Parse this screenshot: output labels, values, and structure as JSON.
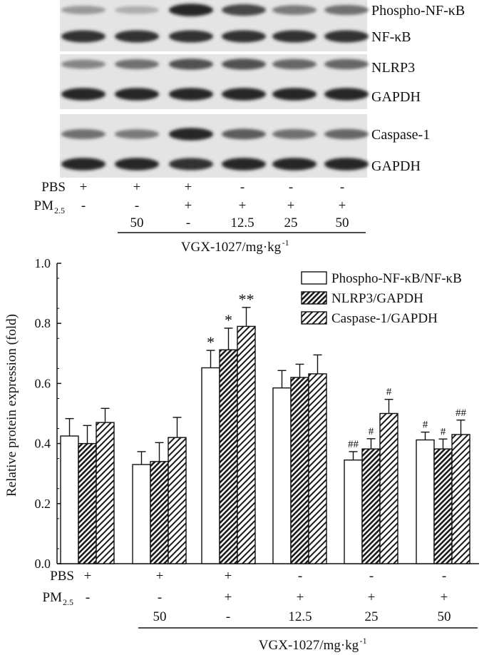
{
  "blot": {
    "rows": [
      {
        "label": "Phospho-NF-κB",
        "group": 0,
        "intensity": [
          0.4,
          0.3,
          0.95,
          0.8,
          0.55,
          0.6
        ]
      },
      {
        "label": "NF-κB",
        "group": 0,
        "intensity": [
          0.9,
          0.9,
          0.9,
          0.9,
          0.9,
          0.9
        ]
      },
      {
        "label": "NLRP3",
        "group": 1,
        "intensity": [
          0.5,
          0.6,
          0.75,
          0.75,
          0.65,
          0.65
        ]
      },
      {
        "label": "GAPDH",
        "group": 1,
        "intensity": [
          0.95,
          0.95,
          0.95,
          0.95,
          0.95,
          0.95
        ]
      },
      {
        "label": "Caspase-1",
        "group": 2,
        "intensity": [
          0.6,
          0.55,
          0.95,
          0.7,
          0.6,
          0.65
        ]
      },
      {
        "label": "GAPDH",
        "group": 2,
        "intensity": [
          0.95,
          0.95,
          0.9,
          0.95,
          0.95,
          0.95
        ]
      }
    ]
  },
  "treatments": {
    "pbs_label": "PBS",
    "pm_label": "PM",
    "pm_subscript": "2.5",
    "pbs": [
      "+",
      "+",
      "+",
      "-",
      "-",
      "-"
    ],
    "pm": [
      "-",
      "-",
      "+",
      "+",
      "+",
      "+"
    ],
    "vgx": [
      "",
      "50",
      "-",
      "12.5",
      "25",
      "50"
    ],
    "vgx_label": "VGX-1027/mg·kg",
    "vgx_superscript": "-1"
  },
  "chart_data": {
    "type": "bar",
    "ylabel": "Relative protein expression (fold)",
    "ylim": [
      0,
      1.0
    ],
    "yticks": [
      "0.0",
      "0.2",
      "0.4",
      "0.6",
      "0.8",
      "1.0"
    ],
    "legend_position": "top-right",
    "series": [
      {
        "name": "Phospho-NF-κB/NF-κB",
        "pattern": "white",
        "values": [
          0.425,
          0.33,
          0.652,
          0.585,
          0.345,
          0.412
        ],
        "errors": [
          0.058,
          0.043,
          0.058,
          0.058,
          0.028,
          0.026
        ],
        "marks": [
          "",
          "",
          "*",
          "",
          "##",
          "#"
        ]
      },
      {
        "name": "NLRP3/GAPDH",
        "pattern": "dense-hatch",
        "values": [
          0.4,
          0.34,
          0.712,
          0.62,
          0.382,
          0.382
        ],
        "errors": [
          0.06,
          0.063,
          0.072,
          0.044,
          0.034,
          0.033
        ],
        "marks": [
          "",
          "",
          "*",
          "",
          "#",
          "#"
        ]
      },
      {
        "name": "Caspase-1/GAPDH",
        "pattern": "sparse-hatch",
        "values": [
          0.47,
          0.42,
          0.79,
          0.632,
          0.5,
          0.43
        ],
        "errors": [
          0.047,
          0.067,
          0.063,
          0.063,
          0.047,
          0.048
        ],
        "marks": [
          "",
          "",
          "**",
          "",
          "#",
          "##"
        ]
      }
    ]
  }
}
